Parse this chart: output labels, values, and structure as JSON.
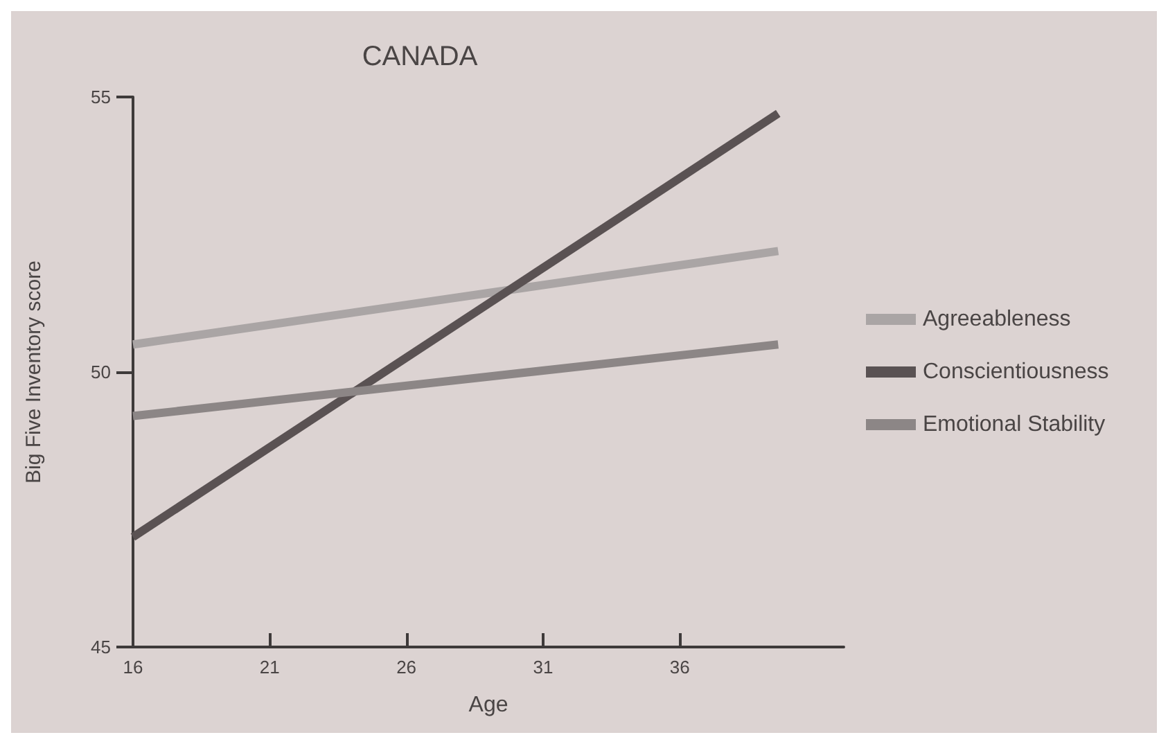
{
  "chart_data": {
    "type": "line",
    "title": "CANADA",
    "xlabel": "Age",
    "ylabel": "Big Five Inventory score",
    "x": [
      16,
      39.6
    ],
    "xlim": [
      16,
      42
    ],
    "xticks": [
      16,
      21,
      26,
      31,
      36
    ],
    "ylim": [
      45,
      55
    ],
    "yticks": [
      45,
      50,
      55
    ],
    "series": [
      {
        "name": "Agreeableness",
        "color": "#aaa5a5",
        "values": [
          50.5,
          52.2
        ]
      },
      {
        "name": "Conscientiousness",
        "color": "#5a5253",
        "values": [
          47.0,
          54.7
        ]
      },
      {
        "name": "Emotional Stability",
        "color": "#8c8686",
        "values": [
          49.2,
          50.5
        ]
      }
    ],
    "grid": false,
    "legend": "right",
    "marker": "none",
    "line_style": "solid"
  }
}
